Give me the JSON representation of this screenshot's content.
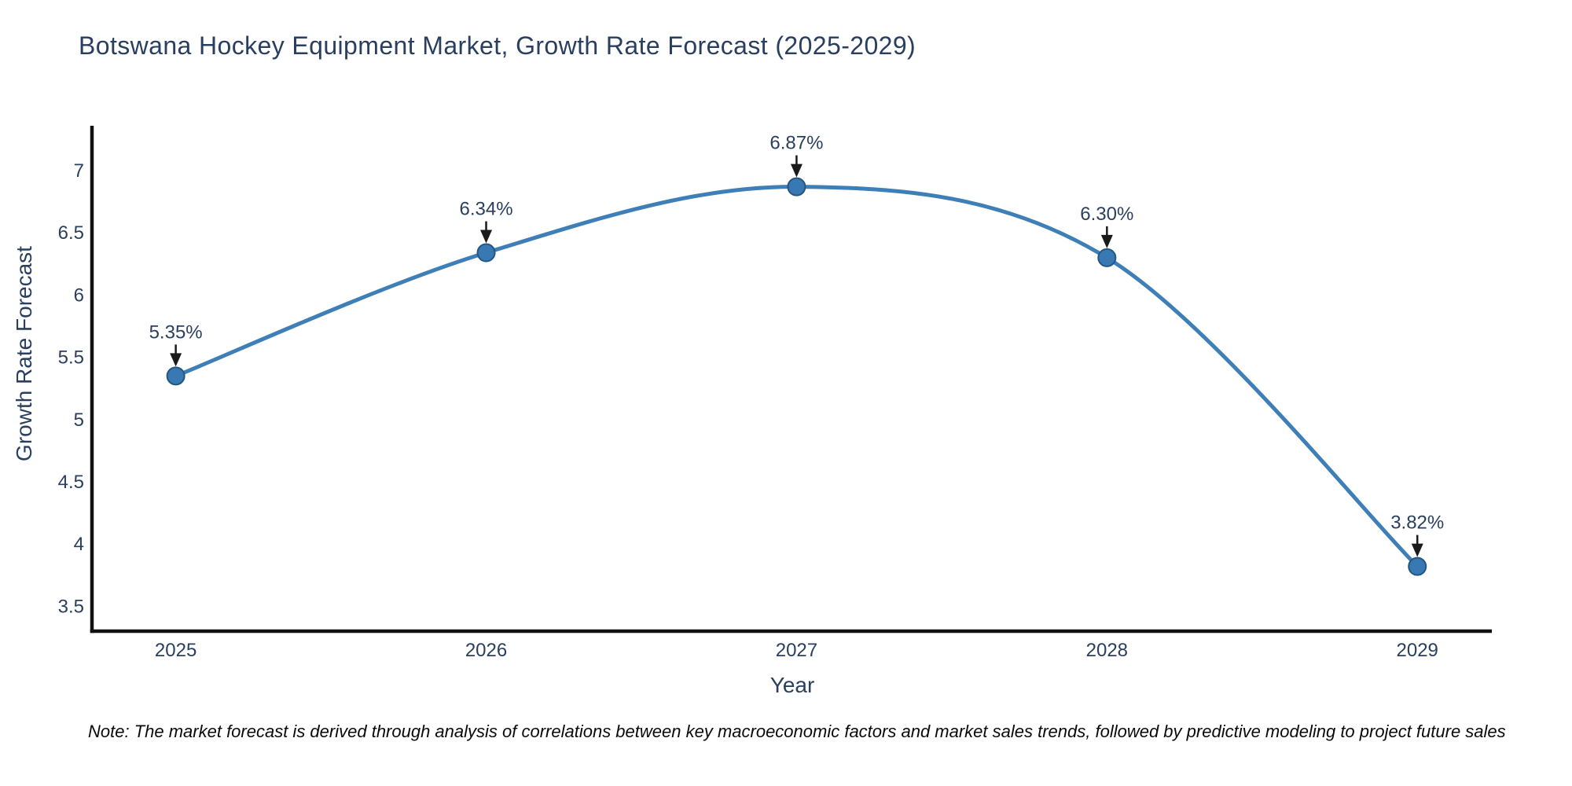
{
  "note": "Note: The market forecast is derived through analysis of correlations between key macroeconomic factors and market sales trends, followed by predictive modeling to project future sales",
  "chart_data": {
    "type": "line",
    "title": "Botswana Hockey Equipment Market, Growth Rate Forecast (2025-2029)",
    "xlabel": "Year",
    "ylabel": "Growth Rate Forecast",
    "x": [
      2025,
      2026,
      2027,
      2028,
      2029
    ],
    "values": [
      5.35,
      6.34,
      6.87,
      6.3,
      3.82
    ],
    "point_labels": [
      "5.35%",
      "6.34%",
      "6.87%",
      "6.30%",
      "3.82%"
    ],
    "series_name": "Growth Rate Forecast",
    "yticks": [
      3.5,
      4,
      4.5,
      5,
      5.5,
      6,
      6.5,
      7
    ],
    "xticks": [
      "2025",
      "2026",
      "2027",
      "2028",
      "2029"
    ],
    "ylim": [
      3.3,
      7.36
    ],
    "xlim": [
      2024.73,
      2029.24
    ],
    "line_shape": "spline",
    "grid": false,
    "legend": "none",
    "colors": {
      "line": "#3f7fb8",
      "marker": "#3878b3",
      "marker_edge": "#24577f",
      "axis": "#111111",
      "text": "#2a3f5f",
      "arrow": "#1a1a1a"
    }
  }
}
